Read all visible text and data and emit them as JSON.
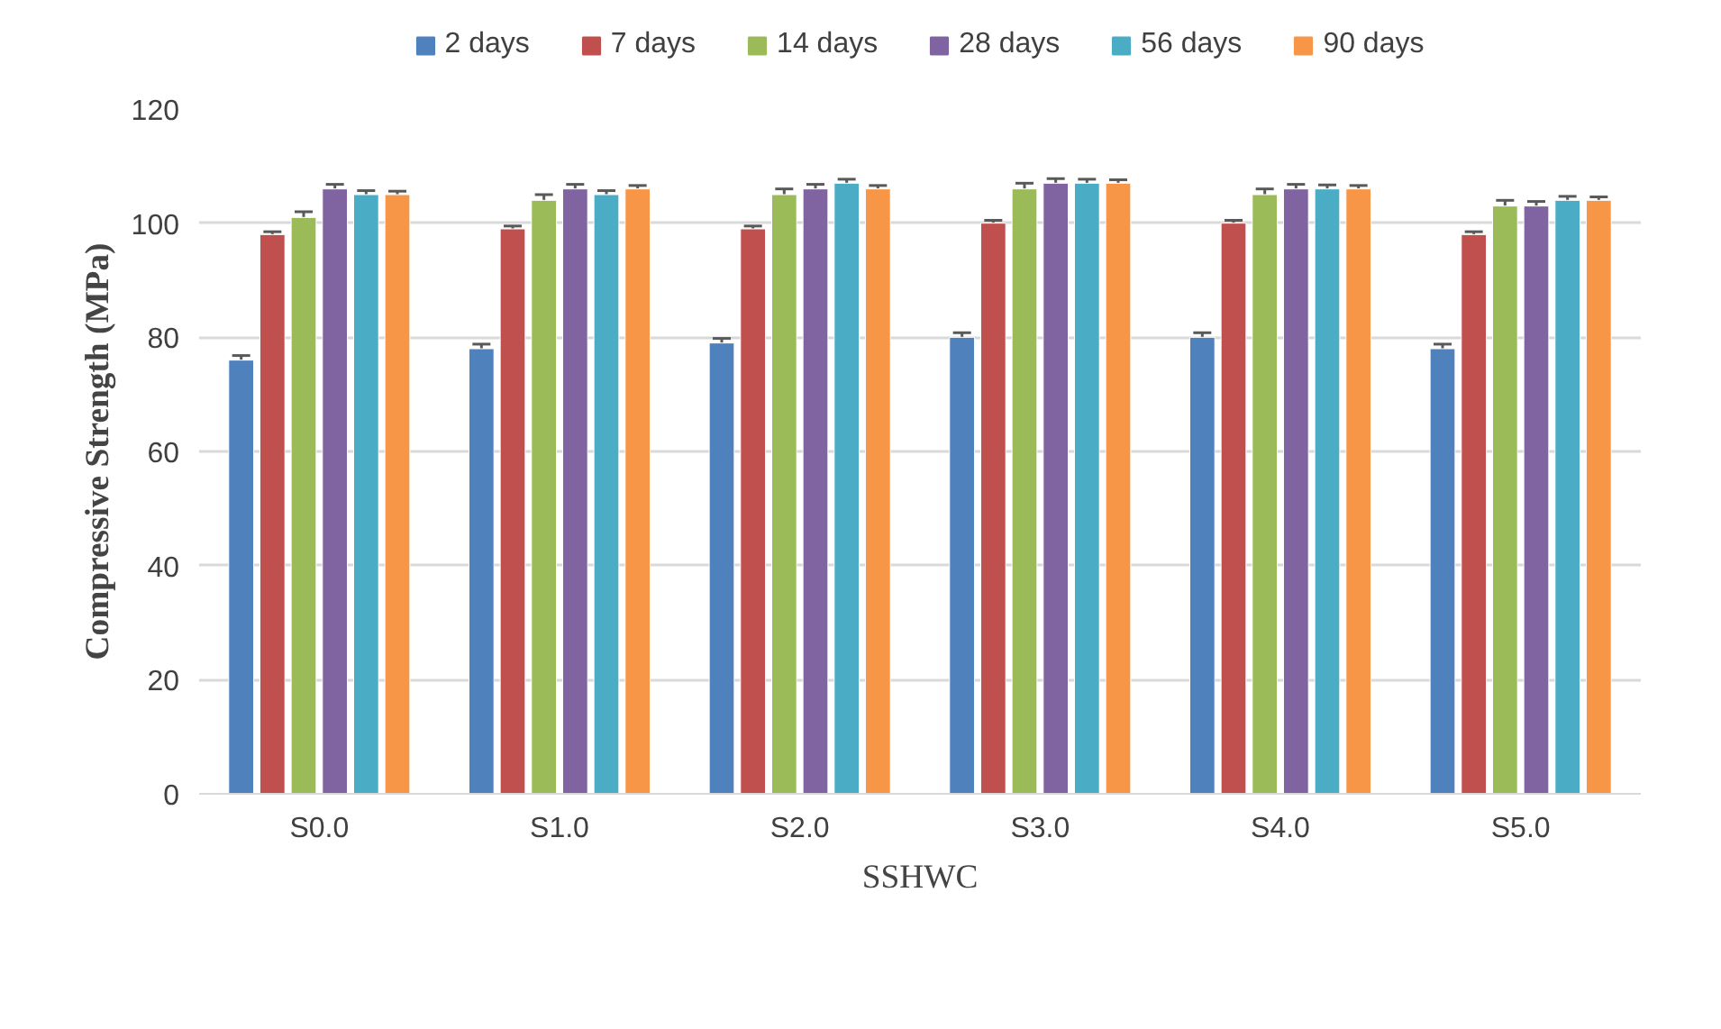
{
  "chart_data": {
    "type": "bar",
    "xlabel": "SSHWC",
    "ylabel": "Compressive Strength (MPa)",
    "categories": [
      "S0.0",
      "S1.0",
      "S2.0",
      "S3.0",
      "S4.0",
      "S5.0"
    ],
    "series": [
      {
        "name": "2 days",
        "color": "#4f81bd",
        "values": [
          76,
          78,
          79,
          80,
          80,
          78
        ],
        "errors": [
          0.8,
          0.8,
          0.8,
          0.8,
          0.8,
          0.8
        ]
      },
      {
        "name": "7 days",
        "color": "#c0504d",
        "values": [
          98,
          99,
          99,
          100,
          100,
          98
        ],
        "errors": [
          0.5,
          0.5,
          0.5,
          0.5,
          0.5,
          0.5
        ]
      },
      {
        "name": "14 days",
        "color": "#9bbb59",
        "values": [
          101,
          104,
          105,
          106,
          105,
          103
        ],
        "errors": [
          1,
          1,
          1,
          1,
          1,
          1
        ]
      },
      {
        "name": "28 days",
        "color": "#8064a2",
        "values": [
          106,
          106,
          106,
          107,
          106,
          103
        ],
        "errors": [
          0.8,
          0.8,
          0.8,
          0.8,
          0.8,
          0.8
        ]
      },
      {
        "name": "56 days",
        "color": "#4bacc6",
        "values": [
          105,
          105,
          107,
          107,
          106,
          104
        ],
        "errors": [
          0.7,
          0.7,
          0.7,
          0.7,
          0.7,
          0.7
        ]
      },
      {
        "name": "90 days",
        "color": "#f79646",
        "values": [
          105,
          106,
          106,
          107,
          106,
          104
        ],
        "errors": [
          0.6,
          0.6,
          0.6,
          0.6,
          0.6,
          0.6
        ]
      }
    ],
    "ylim": [
      0,
      120
    ],
    "yticks": [
      0,
      20,
      40,
      60,
      80,
      100,
      120
    ],
    "grid": "y",
    "legend": "top"
  }
}
